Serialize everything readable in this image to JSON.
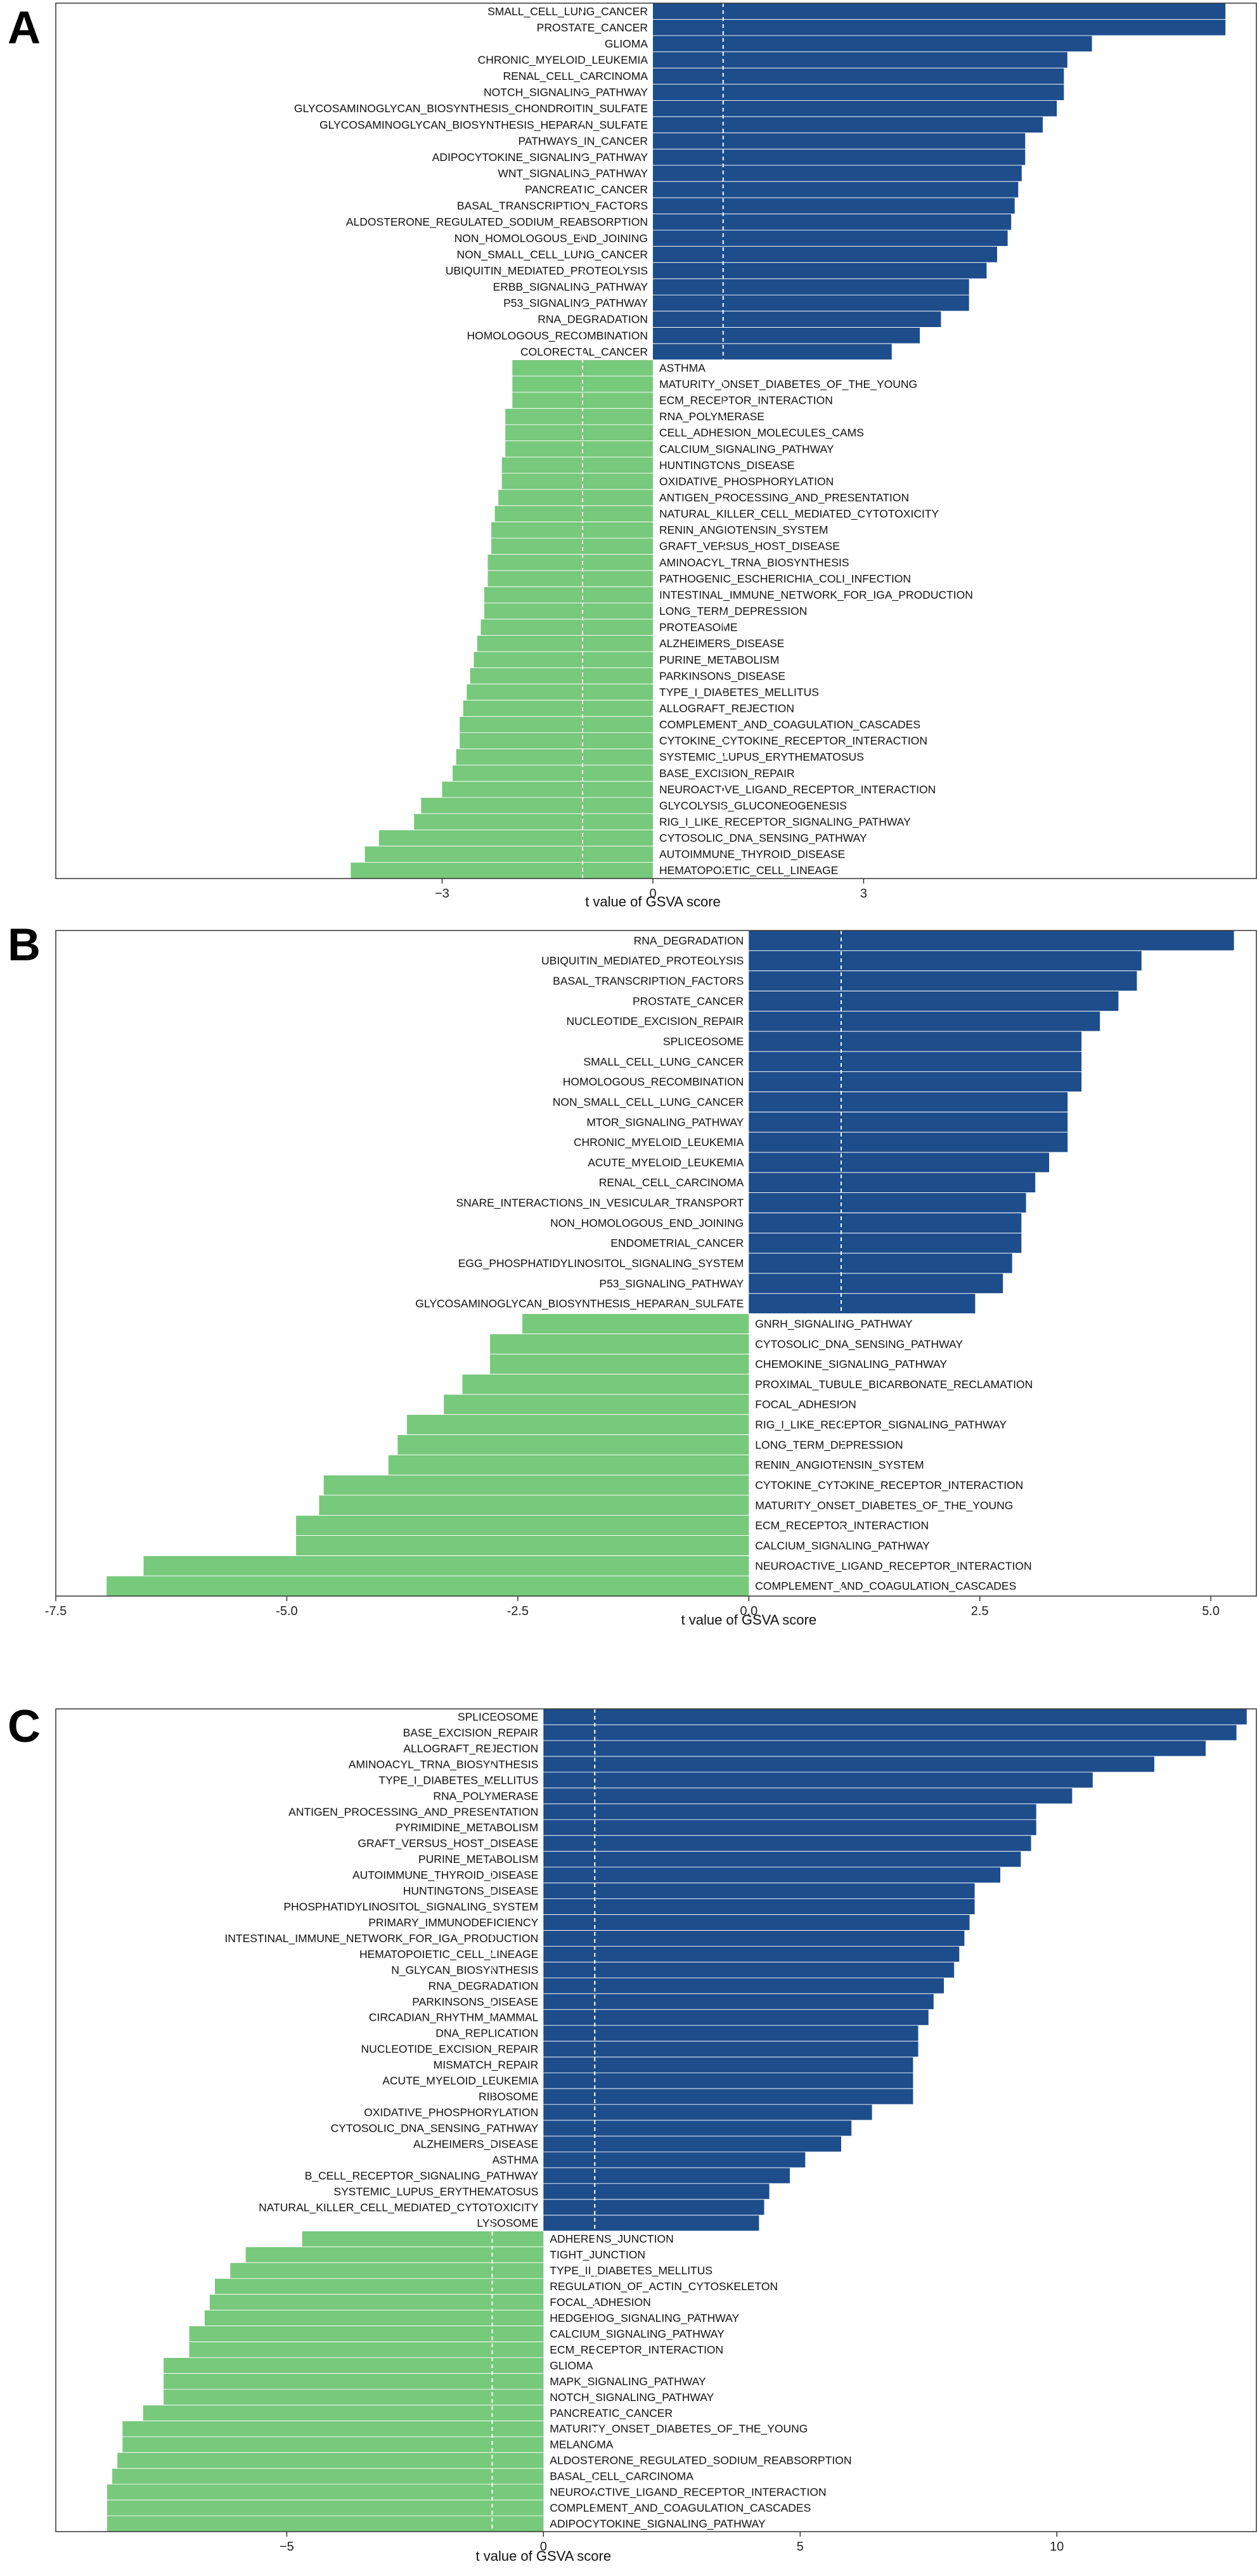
{
  "colors": {
    "positive": "#1e4d8c",
    "negative": "#77c97b",
    "frame": "#333333",
    "dashed": "#ffffff"
  },
  "chart_data": [
    {
      "panel": "A",
      "type": "bar",
      "orientation": "horizontal",
      "xlabel": "t value of GSVA score",
      "xlim": [
        -8.5,
        8.6
      ],
      "xticks": [
        -3,
        0,
        3
      ],
      "threshold_lines": [
        -1,
        1
      ],
      "categories": [
        "SMALL_CELL_LUNG_CANCER",
        "PROSTATE_CANCER",
        "GLIOMA",
        "CHRONIC_MYELOID_LEUKEMIA",
        "RENAL_CELL_CARCINOMA",
        "NOTCH_SIGNALING_PATHWAY",
        "GLYCOSAMINOGLYCAN_BIOSYNTHESIS_CHONDROITIN_SULFATE",
        "GLYCOSAMINOGLYCAN_BIOSYNTHESIS_HEPARAN_SULFATE",
        "PATHWAYS_IN_CANCER",
        "ADIPOCYTOKINE_SIGNALING_PATHWAY",
        "WNT_SIGNALING_PATHWAY",
        "PANCREATIC_CANCER",
        "BASAL_TRANSCRIPTION_FACTORS",
        "ALDOSTERONE_REGULATED_SODIUM_REABSORPTION",
        "NON_HOMOLOGOUS_END_JOINING",
        "NON_SMALL_CELL_LUNG_CANCER",
        "UBIQUITIN_MEDIATED_PROTEOLYSIS",
        "ERBB_SIGNALING_PATHWAY",
        "P53_SIGNALING_PATHWAY",
        "RNA_DEGRADATION",
        "HOMOLOGOUS_RECOMBINATION",
        "COLORECTAL_CANCER",
        "ASTHMA",
        "MATURITY_ONSET_DIABETES_OF_THE_YOUNG",
        "ECM_RECEPTOR_INTERACTION",
        "RNA_POLYMERASE",
        "CELL_ADHESION_MOLECULES_CAMS",
        "CALCIUM_SIGNALING_PATHWAY",
        "HUNTINGTONS_DISEASE",
        "OXIDATIVE_PHOSPHORYLATION",
        "ANTIGEN_PROCESSING_AND_PRESENTATION",
        "NATURAL_KILLER_CELL_MEDIATED_CYTOTOXICITY",
        "RENIN_ANGIOTENSIN_SYSTEM",
        "GRAFT_VERSUS_HOST_DISEASE",
        "AMINOACYL_TRNA_BIOSYNTHESIS",
        "PATHOGENIC_ESCHERICHIA_COLI_INFECTION",
        "INTESTINAL_IMMUNE_NETWORK_FOR_IGA_PRODUCTION",
        "LONG_TERM_DEPRESSION",
        "PROTEASOME",
        "ALZHEIMERS_DISEASE",
        "PURINE_METABOLISM",
        "PARKINSONS_DISEASE",
        "TYPE_I_DIABETES_MELLITUS",
        "ALLOGRAFT_REJECTION",
        "COMPLEMENT_AND_COAGULATION_CASCADES",
        "CYTOKINE_CYTOKINE_RECEPTOR_INTERACTION",
        "SYSTEMIC_LUPUS_ERYTHEMATOSUS",
        "BASE_EXCISION_REPAIR",
        "NEUROACTIVE_LIGAND_RECEPTOR_INTERACTION",
        "GLYCOLYSIS_GLUCONEOGENESIS",
        "RIG_I_LIKE_RECEPTOR_SIGNALING_PATHWAY",
        "CYTOSOLIC_DNA_SENSING_PATHWAY",
        "AUTOIMMUNE_THYROID_DISEASE",
        "HEMATOPOIETIC_CELL_LINEAGE"
      ],
      "values": [
        8.15,
        8.15,
        6.25,
        5.9,
        5.85,
        5.85,
        5.75,
        5.55,
        5.3,
        5.3,
        5.25,
        5.2,
        5.15,
        5.1,
        5.05,
        4.9,
        4.75,
        4.5,
        4.5,
        4.1,
        3.8,
        3.4,
        -2.0,
        -2.0,
        -2.0,
        -2.1,
        -2.1,
        -2.1,
        -2.15,
        -2.15,
        -2.2,
        -2.25,
        -2.3,
        -2.3,
        -2.35,
        -2.35,
        -2.4,
        -2.4,
        -2.45,
        -2.5,
        -2.55,
        -2.6,
        -2.65,
        -2.7,
        -2.75,
        -2.75,
        -2.8,
        -2.85,
        -3.0,
        -3.3,
        -3.4,
        -3.9,
        -4.1,
        -4.3
      ]
    },
    {
      "panel": "B",
      "type": "bar",
      "orientation": "horizontal",
      "xlabel": "t value of GSVA score",
      "xlim": [
        -7.5,
        5.5
      ],
      "xticks": [
        -7.5,
        -5.0,
        -2.5,
        0.0,
        2.5,
        5.0
      ],
      "xtick_labels": [
        "-7.5",
        "-5.0",
        "-2.5",
        "0.0",
        "2.5",
        "5.0"
      ],
      "threshold_lines": [
        1
      ],
      "categories": [
        "RNA_DEGRADATION",
        "UBIQUITIN_MEDIATED_PROTEOLYSIS",
        "BASAL_TRANSCRIPTION_FACTORS",
        "PROSTATE_CANCER",
        "NUCLEOTIDE_EXCISION_REPAIR",
        "SPLICEOSOME",
        "SMALL_CELL_LUNG_CANCER",
        "HOMOLOGOUS_RECOMBINATION",
        "NON_SMALL_CELL_LUNG_CANCER",
        "MTOR_SIGNALING_PATHWAY",
        "CHRONIC_MYELOID_LEUKEMIA",
        "ACUTE_MYELOID_LEUKEMIA",
        "RENAL_CELL_CARCINOMA",
        "SNARE_INTERACTIONS_IN_VESICULAR_TRANSPORT",
        "NON_HOMOLOGOUS_END_JOINING",
        "ENDOMETRIAL_CANCER",
        "EGG_PHOSPHATIDYLINOSITOL_SIGNALING_SYSTEM",
        "P53_SIGNALING_PATHWAY",
        "GLYCOSAMINOGLYCAN_BIOSYNTHESIS_HEPARAN_SULFATE",
        "GNRH_SIGNALING_PATHWAY",
        "CYTOSOLIC_DNA_SENSING_PATHWAY",
        "CHEMOKINE_SIGNALING_PATHWAY",
        "PROXIMAL_TUBULE_BICARBONATE_RECLAMATION",
        "FOCAL_ADHESION",
        "RIG_I_LIKE_RECEPTOR_SIGNALING_PATHWAY",
        "LONG_TERM_DEPRESSION",
        "RENIN_ANGIOTENSIN_SYSTEM",
        "CYTOKINE_CYTOKINE_RECEPTOR_INTERACTION",
        "MATURITY_ONSET_DIABETES_OF_THE_YOUNG",
        "ECM_RECEPTOR_INTERACTION",
        "CALCIUM_SIGNALING_PATHWAY",
        "NEUROACTIVE_LIGAND_RECEPTOR_INTERACTION",
        "COMPLEMENT_AND_COAGULATION_CASCADES"
      ],
      "values": [
        5.25,
        4.25,
        4.2,
        4.0,
        3.8,
        3.6,
        3.6,
        3.6,
        3.45,
        3.45,
        3.45,
        3.25,
        3.1,
        3.0,
        2.95,
        2.95,
        2.85,
        2.75,
        2.45,
        -2.45,
        -2.8,
        -2.8,
        -3.1,
        -3.3,
        -3.7,
        -3.8,
        -3.9,
        -4.6,
        -4.65,
        -4.9,
        -4.9,
        -6.55,
        -6.95
      ]
    },
    {
      "panel": "C",
      "type": "bar",
      "orientation": "horizontal",
      "xlabel": "t value of GSVA score",
      "xlim": [
        -9.5,
        13.9
      ],
      "xticks": [
        -5,
        0,
        5,
        10
      ],
      "threshold_lines": [
        -1,
        1
      ],
      "categories": [
        "SPLICEOSOME",
        "BASE_EXCISION_REPAIR",
        "ALLOGRAFT_REJECTION",
        "AMINOACYL_TRNA_BIOSYNTHESIS",
        "TYPE_I_DIABETES_MELLITUS",
        "RNA_POLYMERASE",
        "ANTIGEN_PROCESSING_AND_PRESENTATION",
        "PYRIMIDINE_METABOLISM",
        "GRAFT_VERSUS_HOST_DISEASE",
        "PURINE_METABOLISM",
        "AUTOIMMUNE_THYROID_DISEASE",
        "HUNTINGTONS_DISEASE",
        "PHOSPHATIDYLINOSITOL_SIGNALING_SYSTEM",
        "PRIMARY_IMMUNODEFICIENCY",
        "INTESTINAL_IMMUNE_NETWORK_FOR_IGA_PRODUCTION",
        "HEMATOPOIETIC_CELL_LINEAGE",
        "N_GLYCAN_BIOSYNTHESIS",
        "RNA_DEGRADATION",
        "PARKINSONS_DISEASE",
        "CIRCADIAN_RHYTHM_MAMMAL",
        "DNA_REPLICATION",
        "NUCLEOTIDE_EXCISION_REPAIR",
        "MISMATCH_REPAIR",
        "ACUTE_MYELOID_LEUKEMIA",
        "RIBOSOME",
        "OXIDATIVE_PHOSPHORYLATION",
        "CYTOSOLIC_DNA_SENSING_PATHWAY",
        "ALZHEIMERS_DISEASE",
        "ASTHMA",
        "B_CELL_RECEPTOR_SIGNALING_PATHWAY",
        "SYSTEMIC_LUPUS_ERYTHEMATOSUS",
        "NATURAL_KILLER_CELL_MEDIATED_CYTOTOXICITY",
        "LYSOSOME",
        "ADHERENS_JUNCTION",
        "TIGHT_JUNCTION",
        "TYPE_II_DIABETES_MELLITUS",
        "REGULATION_OF_ACTIN_CYTOSKELETON",
        "FOCAL_ADHESION",
        "HEDGEHOG_SIGNALING_PATHWAY",
        "CALCIUM_SIGNALING_PATHWAY",
        "ECM_RECEPTOR_INTERACTION",
        "GLIOMA",
        "MAPK_SIGNALING_PATHWAY",
        "NOTCH_SIGNALING_PATHWAY",
        "PANCREATIC_CANCER",
        "MATURITY_ONSET_DIABETES_OF_THE_YOUNG",
        "MELANOMA",
        "ALDOSTERONE_REGULATED_SODIUM_REABSORPTION",
        "BASAL_CELL_CARCINOMA",
        "NEUROACTIVE_LIGAND_RECEPTOR_INTERACTION",
        "COMPLEMENT_AND_COAGULATION_CASCADES",
        "ADIPOCYTOKINE_SIGNALING_PATHWAY"
      ],
      "values": [
        13.7,
        13.5,
        12.9,
        11.9,
        10.7,
        10.3,
        9.6,
        9.6,
        9.5,
        9.3,
        8.9,
        8.4,
        8.4,
        8.3,
        8.2,
        8.1,
        8.0,
        7.8,
        7.6,
        7.5,
        7.3,
        7.3,
        7.2,
        7.2,
        7.2,
        6.4,
        6.0,
        5.8,
        5.1,
        4.8,
        4.4,
        4.3,
        4.2,
        -4.7,
        -5.8,
        -6.1,
        -6.4,
        -6.5,
        -6.6,
        -6.9,
        -6.9,
        -7.4,
        -7.4,
        -7.4,
        -7.8,
        -8.2,
        -8.2,
        -8.3,
        -8.4,
        -8.5,
        -8.5,
        -8.5
      ]
    }
  ]
}
